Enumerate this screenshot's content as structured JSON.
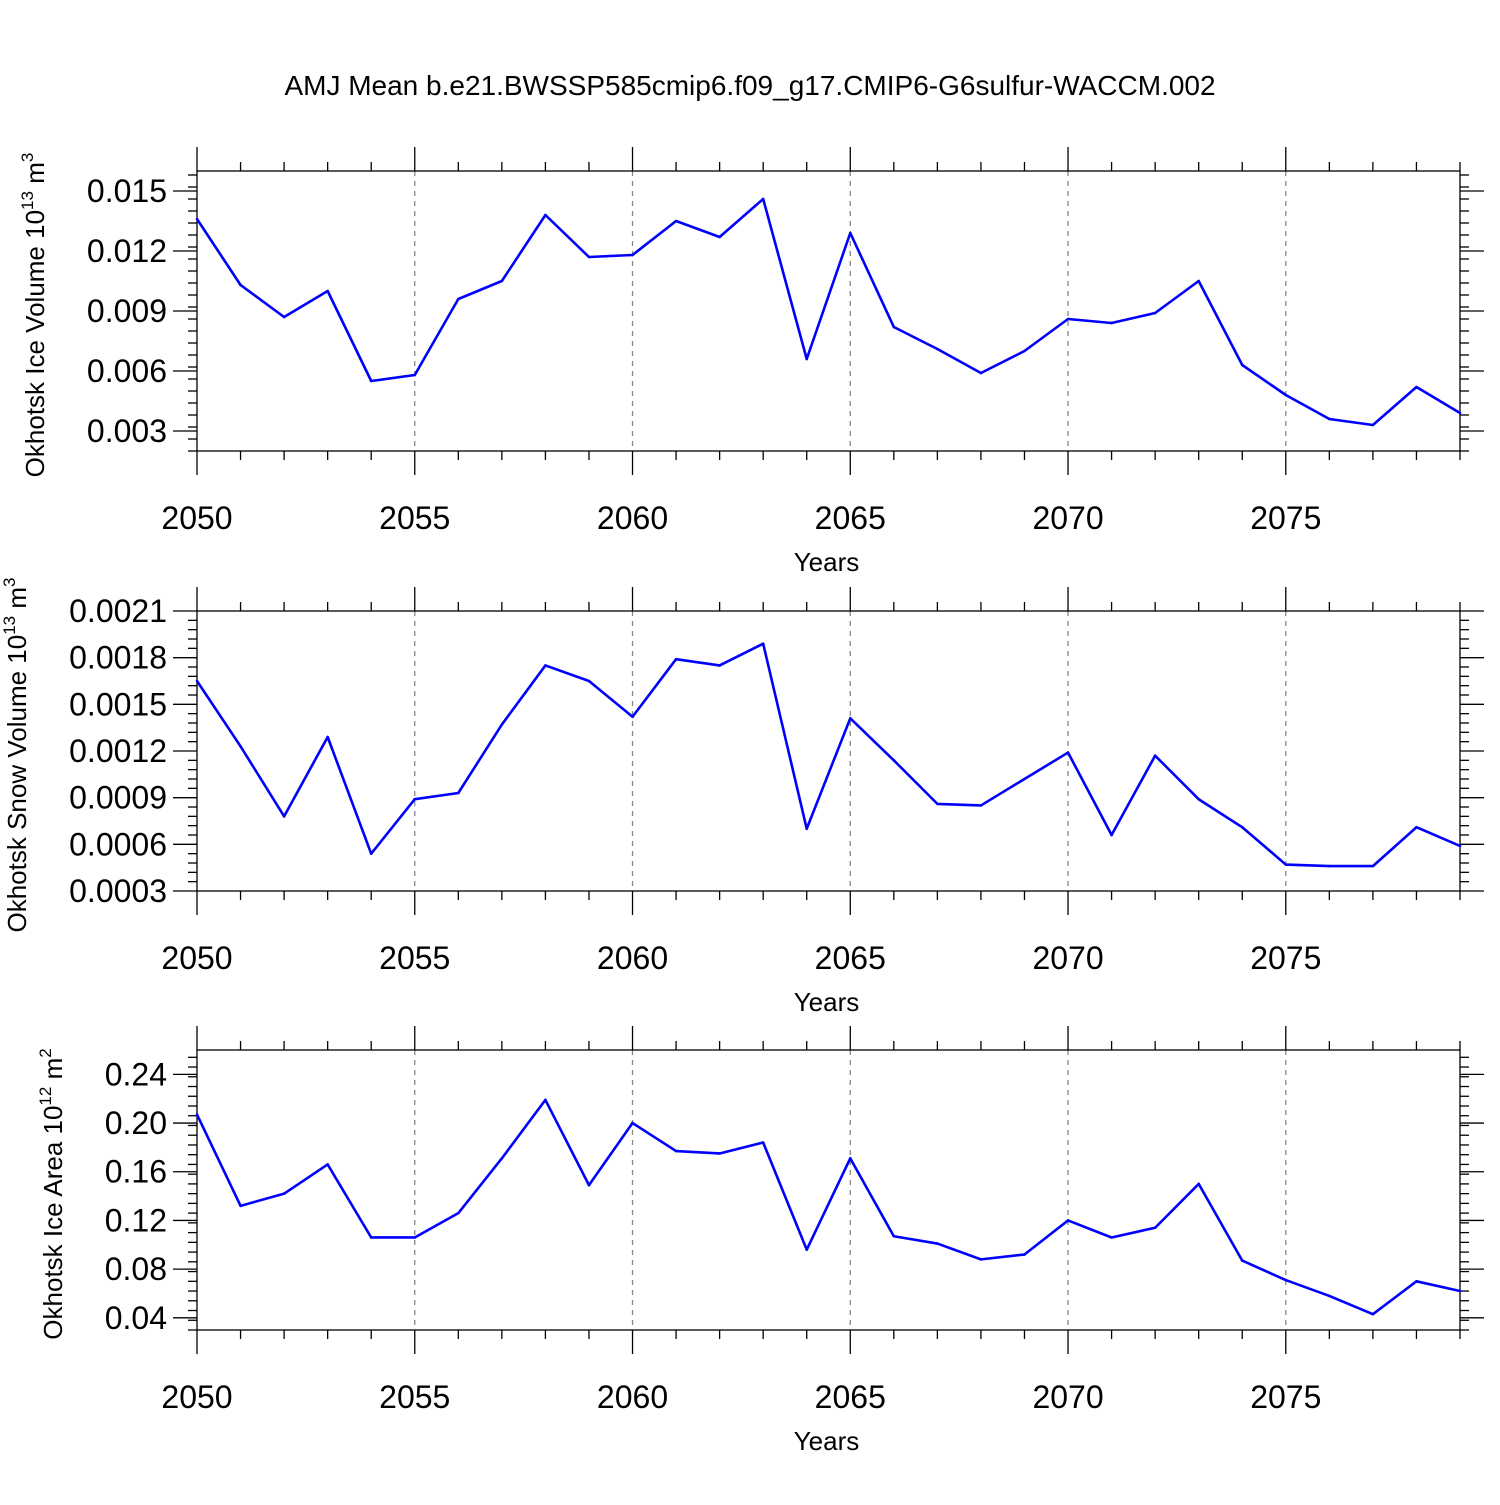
{
  "title": "AMJ Mean b.e21.BWSSP585cmip6.f09_g17.CMIP6-G6sulfur-WACCM.002",
  "line_color": "#0000ff",
  "chart_data": [
    {
      "type": "line",
      "xlabel": "Years",
      "ylabel": {
        "prefix": "Okhotsk Ice Volume 10",
        "exponent": "13",
        "unit": " m",
        "unit_exponent": "3"
      },
      "xlim": [
        2050,
        2079
      ],
      "ylim": [
        0.002,
        0.016
      ],
      "xticks": [
        2050,
        2055,
        2060,
        2065,
        2070,
        2075
      ],
      "xtick_labels": [
        "2050",
        "2055",
        "2060",
        "2065",
        "2070",
        "2075"
      ],
      "yticks": [
        0.003,
        0.006,
        0.009,
        0.012,
        0.015
      ],
      "ytick_labels": [
        "0.003",
        "0.006",
        "0.009",
        "0.012",
        "0.015"
      ],
      "grid": "vertical-dashed",
      "series": [
        {
          "x": [
            2050,
            2051,
            2052,
            2053,
            2054,
            2055,
            2056,
            2057,
            2058,
            2059,
            2060,
            2061,
            2062,
            2063,
            2064,
            2065,
            2066,
            2067,
            2068,
            2069,
            2070,
            2071,
            2072,
            2073,
            2074,
            2075,
            2076,
            2077,
            2078,
            2079
          ],
          "y": [
            0.0136,
            0.0103,
            0.0087,
            0.01,
            0.0055,
            0.0058,
            0.0096,
            0.0105,
            0.0138,
            0.0117,
            0.0118,
            0.0135,
            0.0127,
            0.0146,
            0.0066,
            0.0129,
            0.0082,
            0.0071,
            0.0059,
            0.007,
            0.0086,
            0.0084,
            0.0089,
            0.0105,
            0.0063,
            0.0048,
            0.0036,
            0.0033,
            0.0052,
            0.0039
          ]
        }
      ]
    },
    {
      "type": "line",
      "xlabel": "Years",
      "ylabel": {
        "prefix": "Okhotsk Snow Volume 10",
        "exponent": "13",
        "unit": " m",
        "unit_exponent": "3"
      },
      "xlim": [
        2050,
        2079
      ],
      "ylim": [
        0.0003,
        0.0021
      ],
      "xticks": [
        2050,
        2055,
        2060,
        2065,
        2070,
        2075
      ],
      "xtick_labels": [
        "2050",
        "2055",
        "2060",
        "2065",
        "2070",
        "2075"
      ],
      "yticks": [
        0.0003,
        0.0006,
        0.0009,
        0.0012,
        0.0015,
        0.0018,
        0.0021
      ],
      "ytick_labels": [
        "0.0003",
        "0.0006",
        "0.0009",
        "0.0012",
        "0.0015",
        "0.0018",
        "0.0021"
      ],
      "grid": "vertical-dashed",
      "series": [
        {
          "x": [
            2050,
            2051,
            2052,
            2053,
            2054,
            2055,
            2056,
            2057,
            2058,
            2059,
            2060,
            2061,
            2062,
            2063,
            2064,
            2065,
            2066,
            2067,
            2068,
            2069,
            2070,
            2071,
            2072,
            2073,
            2074,
            2075,
            2076,
            2077,
            2078,
            2079
          ],
          "y": [
            0.00165,
            0.00123,
            0.00078,
            0.00129,
            0.00054,
            0.00089,
            0.00093,
            0.00137,
            0.00175,
            0.00165,
            0.00142,
            0.00179,
            0.00175,
            0.00189,
            0.0007,
            0.00141,
            0.00114,
            0.00086,
            0.00085,
            0.00102,
            0.00119,
            0.00066,
            0.00117,
            0.00089,
            0.00071,
            0.00047,
            0.00046,
            0.00046,
            0.00071,
            0.00059
          ]
        }
      ]
    },
    {
      "type": "line",
      "xlabel": "Years",
      "ylabel": {
        "prefix": "Okhotsk Ice Area 10",
        "exponent": "12",
        "unit": " m",
        "unit_exponent": "2"
      },
      "xlim": [
        2050,
        2079
      ],
      "ylim": [
        0.03,
        0.26
      ],
      "xticks": [
        2050,
        2055,
        2060,
        2065,
        2070,
        2075
      ],
      "xtick_labels": [
        "2050",
        "2055",
        "2060",
        "2065",
        "2070",
        "2075"
      ],
      "yticks": [
        0.04,
        0.08,
        0.12,
        0.16,
        0.2,
        0.24
      ],
      "ytick_labels": [
        "0.04",
        "0.08",
        "0.12",
        "0.16",
        "0.20",
        "0.24"
      ],
      "grid": "vertical-dashed",
      "series": [
        {
          "x": [
            2050,
            2051,
            2052,
            2053,
            2054,
            2055,
            2056,
            2057,
            2058,
            2059,
            2060,
            2061,
            2062,
            2063,
            2064,
            2065,
            2066,
            2067,
            2068,
            2069,
            2070,
            2071,
            2072,
            2073,
            2074,
            2075,
            2076,
            2077,
            2078,
            2079
          ],
          "y": [
            0.207,
            0.132,
            0.142,
            0.166,
            0.106,
            0.106,
            0.126,
            0.171,
            0.219,
            0.149,
            0.2,
            0.177,
            0.175,
            0.184,
            0.096,
            0.171,
            0.107,
            0.101,
            0.088,
            0.092,
            0.12,
            0.106,
            0.114,
            0.15,
            0.087,
            0.071,
            0.058,
            0.043,
            0.07,
            0.062
          ]
        }
      ]
    }
  ]
}
